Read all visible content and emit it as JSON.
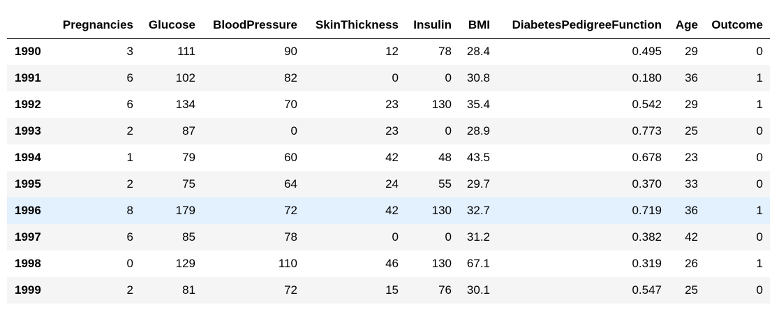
{
  "dataframe": {
    "columns": [
      "Pregnancies",
      "Glucose",
      "BloodPressure",
      "SkinThickness",
      "Insulin",
      "BMI",
      "DiabetesPedigreeFunction",
      "Age",
      "Outcome"
    ],
    "highlighted_row_index": "1996",
    "rows": [
      {
        "index": "1990",
        "values": [
          "3",
          "111",
          "90",
          "12",
          "78",
          "28.4",
          "0.495",
          "29",
          "0"
        ]
      },
      {
        "index": "1991",
        "values": [
          "6",
          "102",
          "82",
          "0",
          "0",
          "30.8",
          "0.180",
          "36",
          "1"
        ]
      },
      {
        "index": "1992",
        "values": [
          "6",
          "134",
          "70",
          "23",
          "130",
          "35.4",
          "0.542",
          "29",
          "1"
        ]
      },
      {
        "index": "1993",
        "values": [
          "2",
          "87",
          "0",
          "23",
          "0",
          "28.9",
          "0.773",
          "25",
          "0"
        ]
      },
      {
        "index": "1994",
        "values": [
          "1",
          "79",
          "60",
          "42",
          "48",
          "43.5",
          "0.678",
          "23",
          "0"
        ]
      },
      {
        "index": "1995",
        "values": [
          "2",
          "75",
          "64",
          "24",
          "55",
          "29.7",
          "0.370",
          "33",
          "0"
        ]
      },
      {
        "index": "1996",
        "values": [
          "8",
          "179",
          "72",
          "42",
          "130",
          "32.7",
          "0.719",
          "36",
          "1"
        ]
      },
      {
        "index": "1997",
        "values": [
          "6",
          "85",
          "78",
          "0",
          "0",
          "31.2",
          "0.382",
          "42",
          "0"
        ]
      },
      {
        "index": "1998",
        "values": [
          "0",
          "129",
          "110",
          "46",
          "130",
          "67.1",
          "0.319",
          "26",
          "1"
        ]
      },
      {
        "index": "1999",
        "values": [
          "2",
          "81",
          "72",
          "15",
          "76",
          "30.1",
          "0.547",
          "25",
          "0"
        ]
      }
    ]
  }
}
